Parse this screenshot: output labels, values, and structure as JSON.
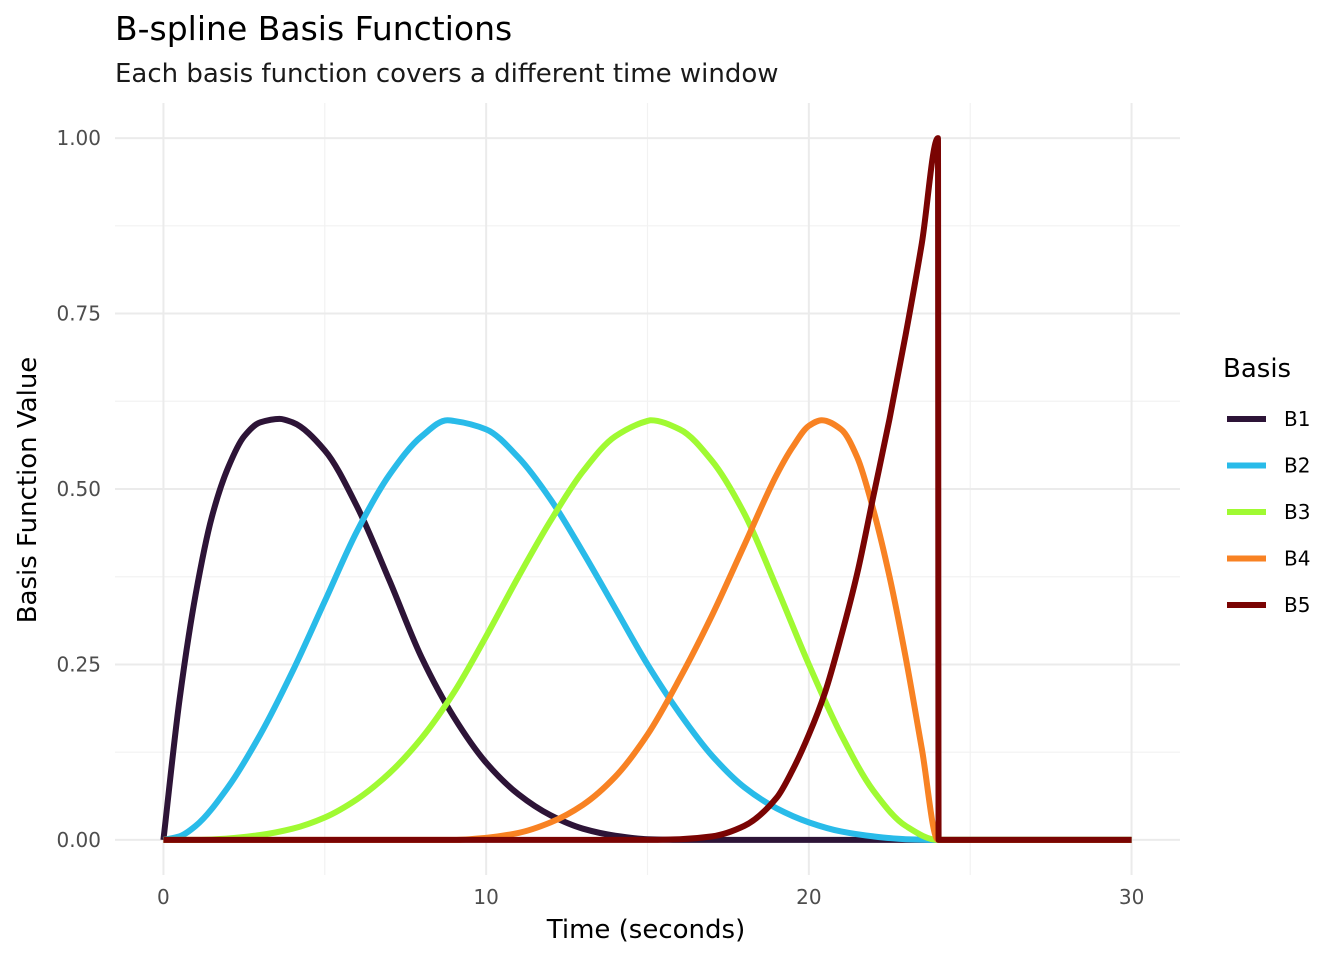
{
  "chart_data": {
    "type": "line",
    "title": "B-spline Basis Functions",
    "subtitle": "Each basis function covers a different time window",
    "xlabel": "Time (seconds)",
    "ylabel": "Basis Function Value",
    "xlim": [
      -1.5,
      31.5
    ],
    "ylim": [
      -0.05,
      1.05
    ],
    "x_ticks": [
      0,
      10,
      20,
      30
    ],
    "x_tick_labels": [
      "0",
      "10",
      "20",
      "30"
    ],
    "x_minor_ticks": [
      5,
      15,
      25
    ],
    "y_ticks": [
      0,
      0.25,
      0.5,
      0.75,
      1.0
    ],
    "y_tick_labels": [
      "0.00",
      "0.25",
      "0.50",
      "0.75",
      "1.00"
    ],
    "y_minor_ticks": [
      0.125,
      0.375,
      0.625,
      0.875
    ],
    "grid": true,
    "legend": {
      "title": "Basis",
      "placement": "right"
    },
    "series": [
      {
        "name": "B1",
        "color": "#2d1437",
        "x": [
          0,
          0.5,
          1,
          1.5,
          2,
          2.5,
          3,
          3.6,
          4,
          5,
          6,
          7,
          8,
          9,
          10,
          11,
          12,
          13,
          14,
          15,
          16,
          17,
          18,
          20,
          22,
          24,
          30
        ],
        "y": [
          0,
          0.2,
          0.35,
          0.46,
          0.53,
          0.575,
          0.595,
          0.6,
          0.595,
          0.555,
          0.475,
          0.37,
          0.26,
          0.175,
          0.11,
          0.065,
          0.035,
          0.016,
          0.006,
          0.001,
          0,
          0,
          0,
          0,
          0,
          0,
          0
        ]
      },
      {
        "name": "B2",
        "color": "#29bbe9",
        "x": [
          0,
          0.5,
          1,
          2,
          3,
          4,
          5,
          6,
          7,
          8,
          8.8,
          9,
          10,
          11,
          12,
          13,
          14,
          15,
          16,
          17,
          18,
          19,
          20,
          21,
          22,
          23,
          24,
          30
        ],
        "y": [
          0,
          0.005,
          0.02,
          0.075,
          0.15,
          0.24,
          0.34,
          0.44,
          0.52,
          0.575,
          0.598,
          0.597,
          0.585,
          0.545,
          0.485,
          0.41,
          0.33,
          0.25,
          0.18,
          0.12,
          0.075,
          0.045,
          0.025,
          0.012,
          0.005,
          0.001,
          0,
          0
        ]
      },
      {
        "name": "B3",
        "color": "#a0fa32",
        "x": [
          0,
          1,
          2,
          3,
          4,
          5,
          6,
          7,
          8,
          9,
          10,
          11,
          12,
          13,
          14,
          15,
          15.1,
          16,
          17,
          18,
          19,
          20,
          21,
          22,
          23,
          24,
          30
        ],
        "y": [
          0,
          0,
          0.002,
          0.007,
          0.016,
          0.032,
          0.058,
          0.095,
          0.145,
          0.21,
          0.29,
          0.375,
          0.455,
          0.525,
          0.575,
          0.597,
          0.598,
          0.585,
          0.54,
          0.465,
          0.36,
          0.25,
          0.15,
          0.07,
          0.02,
          0,
          0
        ]
      },
      {
        "name": "B4",
        "color": "#f88223",
        "x": [
          0,
          9,
          10,
          11,
          12,
          13,
          14,
          15,
          16,
          17,
          18,
          19,
          19.5,
          20,
          20.4,
          21,
          21.5,
          22,
          22.5,
          23,
          23.5,
          24,
          30
        ],
        "y": [
          0,
          0,
          0.003,
          0.01,
          0.025,
          0.05,
          0.09,
          0.15,
          0.23,
          0.32,
          0.42,
          0.52,
          0.56,
          0.59,
          0.598,
          0.585,
          0.545,
          0.47,
          0.375,
          0.26,
          0.13,
          0,
          0
        ]
      },
      {
        "name": "B5",
        "color": "#7a0403",
        "x": [
          0,
          15,
          16,
          17,
          18,
          19,
          19.5,
          20,
          20.5,
          21,
          21.5,
          22,
          22.5,
          23,
          23.5,
          24,
          24.02,
          30
        ],
        "y": [
          0,
          0,
          0.001,
          0.005,
          0.02,
          0.06,
          0.1,
          0.15,
          0.21,
          0.29,
          0.38,
          0.49,
          0.6,
          0.72,
          0.85,
          1.0,
          0,
          0
        ]
      }
    ]
  }
}
